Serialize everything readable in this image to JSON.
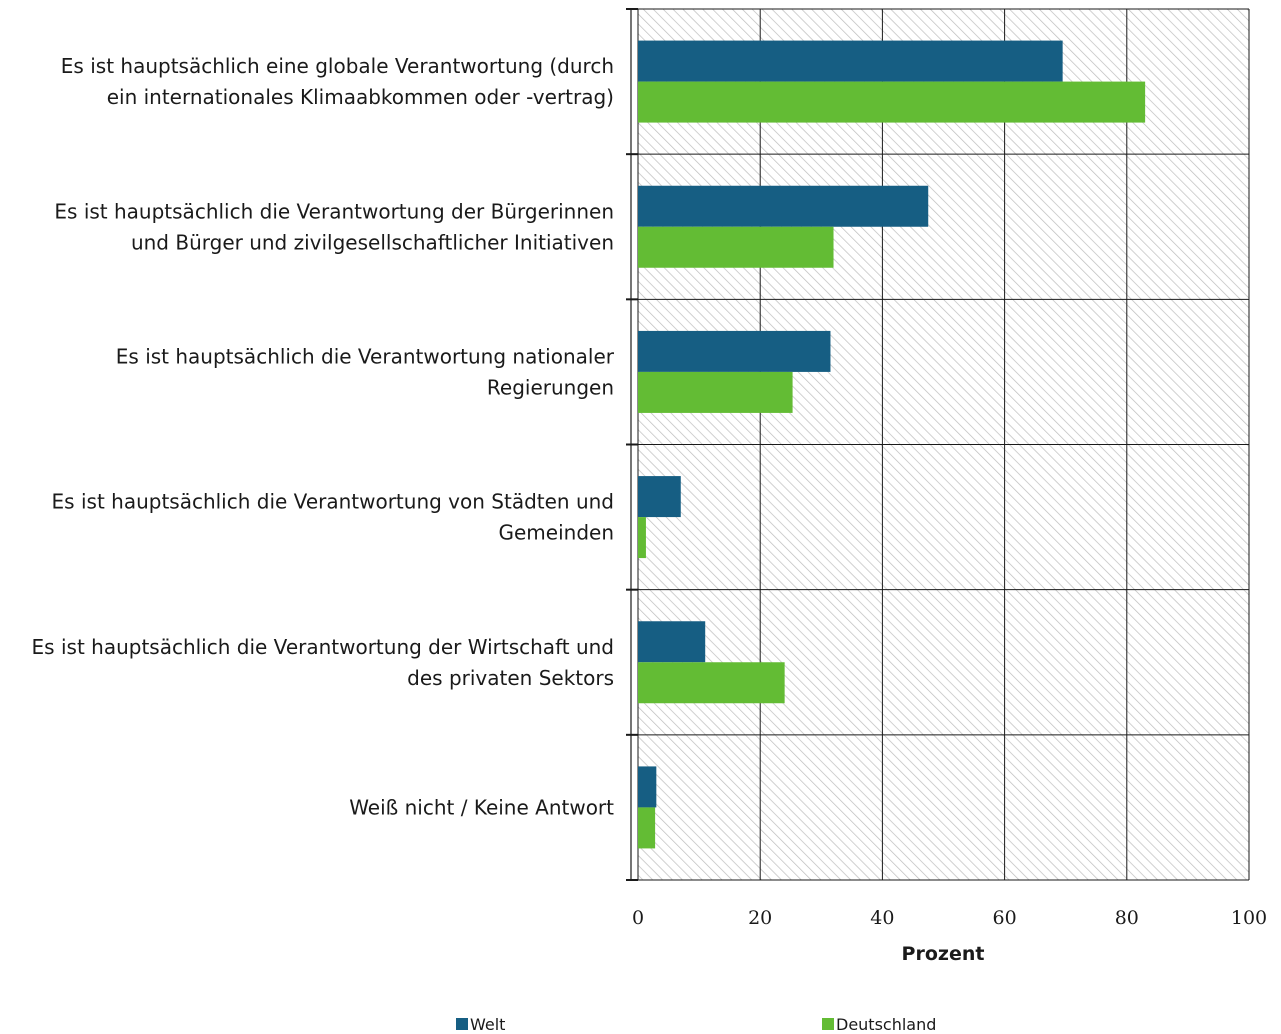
{
  "chart_data": {
    "type": "bar",
    "orientation": "horizontal",
    "categories": [
      [
        "Es ist hauptsächlich eine globale Verantwortung (durch",
        "ein internationales Klimaabkommen oder -vertrag)"
      ],
      [
        "Es ist hauptsächlich die Verantwortung der Bürgerinnen",
        "und Bürger und zivilgesellschaftlicher Initiativen"
      ],
      [
        "Es ist hauptsächlich die Verantwortung nationaler",
        "Regierungen"
      ],
      [
        "Es ist hauptsächlich die Verantwortung von Städten und",
        "Gemeinden"
      ],
      [
        "Es ist hauptsächlich die Verantwortung der Wirtschaft und",
        "des privaten Sektors"
      ],
      [
        "Weiß nicht / Keine Antwort"
      ]
    ],
    "series": [
      {
        "name": "Welt",
        "color": "#165e83",
        "values": [
          69.5,
          47.5,
          31.5,
          7,
          11,
          3
        ]
      },
      {
        "name": "Deutschland",
        "color": "#63bc34",
        "values": [
          83,
          32,
          25.3,
          1.3,
          24,
          2.8
        ]
      }
    ],
    "xlabel": "Prozent",
    "xlim": [
      0,
      100
    ],
    "xticks": [
      0,
      20,
      40,
      60,
      80,
      100
    ],
    "grid": true,
    "legend": "bottom"
  }
}
